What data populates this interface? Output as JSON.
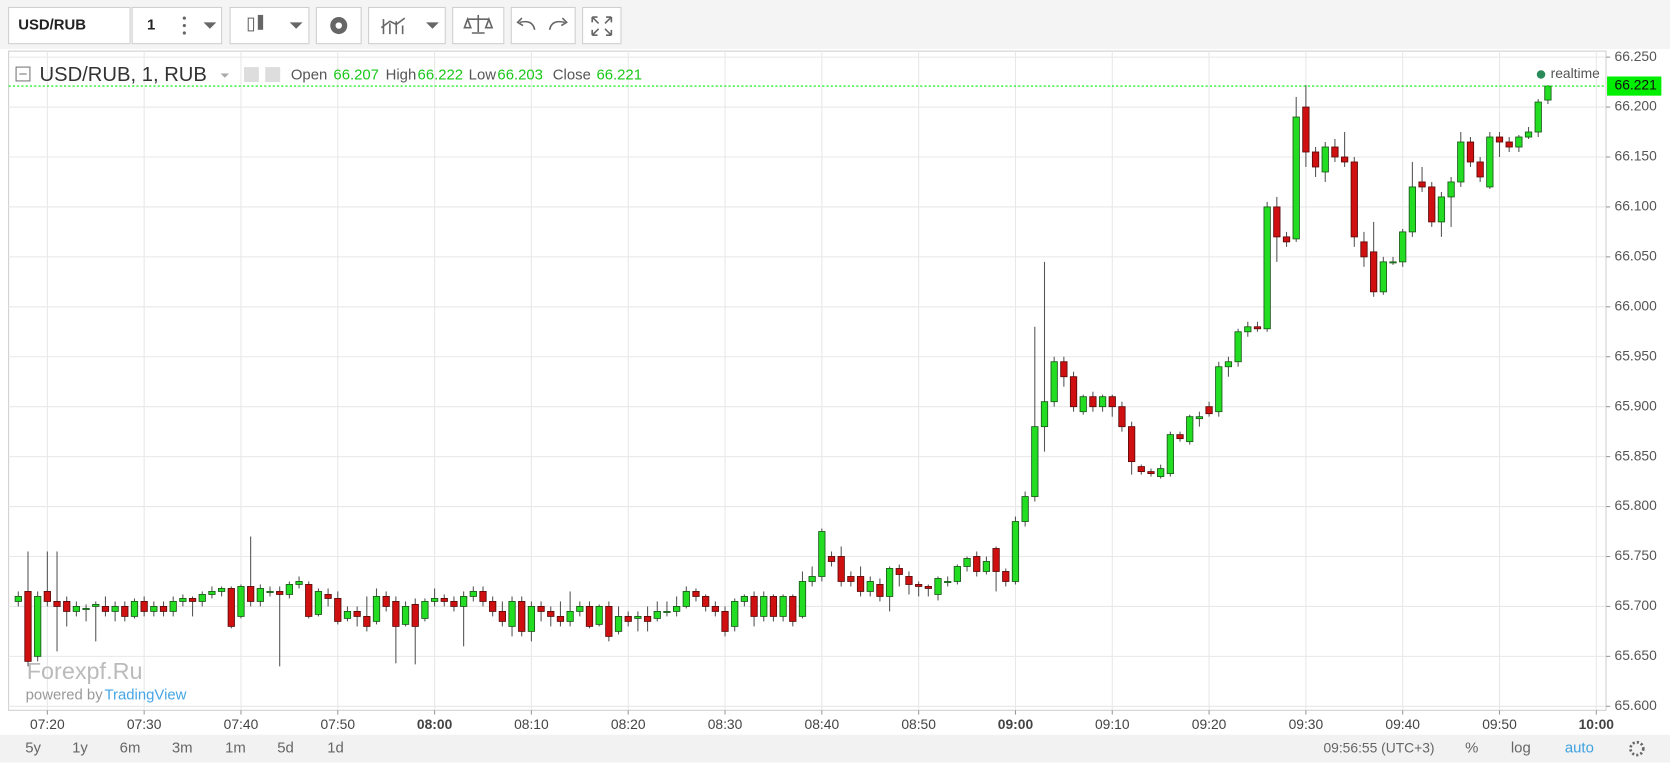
{
  "chart_data": {
    "type": "candlestick",
    "x": [
      "07:17",
      "07:18",
      "07:19",
      "07:20",
      "07:21",
      "07:22",
      "07:23",
      "07:24",
      "07:25",
      "07:26",
      "07:27",
      "07:28",
      "07:29",
      "07:30",
      "07:31",
      "07:32",
      "07:33",
      "07:34",
      "07:35",
      "07:36",
      "07:37",
      "07:38",
      "07:39",
      "07:40",
      "07:41",
      "07:42",
      "07:43",
      "07:44",
      "07:45",
      "07:46",
      "07:47",
      "07:48",
      "07:49",
      "07:50",
      "07:51",
      "07:52",
      "07:53",
      "07:54",
      "07:55",
      "07:56",
      "07:57",
      "07:58",
      "07:59",
      "08:00",
      "08:01",
      "08:02",
      "08:03",
      "08:04",
      "08:05",
      "08:06",
      "08:07",
      "08:08",
      "08:09",
      "08:10",
      "08:11",
      "08:12",
      "08:13",
      "08:14",
      "08:15",
      "08:16",
      "08:17",
      "08:18",
      "08:19",
      "08:20",
      "08:21",
      "08:22",
      "08:23",
      "08:24",
      "08:25",
      "08:26",
      "08:27",
      "08:28",
      "08:29",
      "08:30",
      "08:31",
      "08:32",
      "08:33",
      "08:34",
      "08:35",
      "08:36",
      "08:37",
      "08:38",
      "08:39",
      "08:40",
      "08:41",
      "08:42",
      "08:43",
      "08:44",
      "08:45",
      "08:46",
      "08:47",
      "08:48",
      "08:49",
      "08:50",
      "08:51",
      "08:52",
      "08:53",
      "08:54",
      "08:55",
      "08:56",
      "08:57",
      "08:58",
      "08:59",
      "09:00",
      "09:01",
      "09:02",
      "09:03",
      "09:04",
      "09:05",
      "09:06",
      "09:07",
      "09:08",
      "09:09",
      "09:10",
      "09:11",
      "09:12",
      "09:13",
      "09:14",
      "09:15",
      "09:16",
      "09:17",
      "09:18",
      "09:19",
      "09:20",
      "09:21",
      "09:22",
      "09:23",
      "09:24",
      "09:25",
      "09:26",
      "09:27",
      "09:28",
      "09:29",
      "09:30",
      "09:31",
      "09:32",
      "09:33",
      "09:34",
      "09:35",
      "09:36",
      "09:37",
      "09:38",
      "09:39",
      "09:40",
      "09:41",
      "09:42",
      "09:43",
      "09:44",
      "09:45",
      "09:46",
      "09:47",
      "09:48",
      "09:49",
      "09:50",
      "09:51",
      "09:52",
      "09:53",
      "09:54",
      "09:55"
    ],
    "open": [
      65.705,
      65.715,
      65.65,
      65.715,
      65.705,
      65.705,
      65.695,
      65.698,
      65.7,
      65.7,
      65.695,
      65.7,
      65.69,
      65.705,
      65.695,
      65.7,
      65.695,
      65.705,
      65.708,
      65.705,
      65.712,
      65.715,
      65.718,
      65.69,
      65.72,
      65.705,
      65.715,
      65.715,
      65.712,
      65.722,
      65.722,
      65.692,
      65.712,
      65.708,
      65.688,
      65.695,
      65.69,
      65.685,
      65.71,
      65.705,
      65.682,
      65.702,
      65.688,
      65.705,
      65.708,
      65.705,
      65.7,
      65.71,
      65.715,
      65.705,
      65.695,
      65.68,
      65.705,
      65.675,
      65.7,
      65.695,
      65.69,
      65.685,
      65.695,
      65.7,
      65.682,
      65.7,
      65.675,
      65.69,
      65.688,
      65.69,
      65.688,
      65.695,
      65.695,
      65.7,
      65.715,
      65.71,
      65.7,
      65.695,
      65.68,
      65.705,
      65.71,
      65.69,
      65.71,
      65.69,
      65.71,
      65.69,
      65.725,
      65.73,
      65.75,
      65.75,
      65.73,
      65.73,
      65.715,
      65.722,
      65.71,
      65.738,
      65.73,
      65.722,
      65.72,
      65.712,
      65.725,
      65.725,
      65.74,
      65.75,
      65.735,
      65.758,
      65.735,
      65.725,
      65.785,
      65.81,
      65.88,
      65.905,
      65.945,
      65.93,
      65.895,
      65.91,
      65.9,
      65.91,
      65.9,
      65.88,
      65.84,
      65.835,
      65.83,
      65.833,
      65.872,
      65.865,
      65.888,
      65.9,
      65.895,
      65.94,
      65.945,
      65.975,
      65.98,
      65.978,
      66.1,
      66.07,
      66.068,
      66.2,
      66.155,
      66.135,
      66.16,
      66.15,
      66.145,
      66.065,
      66.055,
      66.015,
      66.045,
      66.045,
      66.075,
      66.125,
      66.12,
      66.085,
      66.11,
      66.125,
      66.165,
      66.145,
      66.12,
      66.17,
      66.165,
      66.16,
      66.17,
      66.175,
      66.207
    ],
    "high": [
      65.715,
      65.755,
      65.715,
      65.755,
      65.755,
      65.71,
      65.705,
      65.702,
      65.705,
      65.71,
      65.705,
      65.705,
      65.708,
      65.71,
      65.705,
      65.705,
      65.71,
      65.712,
      65.71,
      65.715,
      65.72,
      65.72,
      65.72,
      65.722,
      65.77,
      65.722,
      65.72,
      65.72,
      65.725,
      65.73,
      65.725,
      65.718,
      65.718,
      65.715,
      65.7,
      65.7,
      65.71,
      65.718,
      65.715,
      65.71,
      65.705,
      65.708,
      65.708,
      65.718,
      65.712,
      65.71,
      65.715,
      65.72,
      65.72,
      65.71,
      65.705,
      65.71,
      65.71,
      65.705,
      65.705,
      65.7,
      65.705,
      65.715,
      65.705,
      65.705,
      65.702,
      65.705,
      65.7,
      65.695,
      65.695,
      65.7,
      65.705,
      65.705,
      65.71,
      65.72,
      65.718,
      65.712,
      65.705,
      65.7,
      65.708,
      65.712,
      65.715,
      65.715,
      65.712,
      65.712,
      65.712,
      65.735,
      65.74,
      65.778,
      65.755,
      65.76,
      65.735,
      65.74,
      65.73,
      65.728,
      65.74,
      65.742,
      65.735,
      65.725,
      65.722,
      65.73,
      65.73,
      65.742,
      65.75,
      65.755,
      65.75,
      65.76,
      65.738,
      65.79,
      65.815,
      65.98,
      66.045,
      65.95,
      65.95,
      65.935,
      65.912,
      65.915,
      65.912,
      65.912,
      65.905,
      65.885,
      65.842,
      65.838,
      65.842,
      65.875,
      65.875,
      65.892,
      65.895,
      65.905,
      65.945,
      65.95,
      65.978,
      65.985,
      65.985,
      66.105,
      66.11,
      66.075,
      66.21,
      66.222,
      66.16,
      66.165,
      66.168,
      66.175,
      66.15,
      66.075,
      66.085,
      66.05,
      66.05,
      66.078,
      66.145,
      66.14,
      66.125,
      66.115,
      66.13,
      66.175,
      66.17,
      66.15,
      66.175,
      66.175,
      66.17,
      66.172,
      66.18,
      66.208,
      66.222
    ],
    "low": [
      65.7,
      65.64,
      65.645,
      65.7,
      65.655,
      65.68,
      65.69,
      65.685,
      65.665,
      65.69,
      65.685,
      65.685,
      65.688,
      65.69,
      65.69,
      65.69,
      65.69,
      65.7,
      65.69,
      65.7,
      65.708,
      65.71,
      65.678,
      65.688,
      65.7,
      65.7,
      65.71,
      65.64,
      65.708,
      65.718,
      65.688,
      65.69,
      65.7,
      65.682,
      65.685,
      65.68,
      65.675,
      65.682,
      65.695,
      65.643,
      65.68,
      65.642,
      65.685,
      65.7,
      65.7,
      65.695,
      65.66,
      65.705,
      65.7,
      65.69,
      65.68,
      65.67,
      65.67,
      65.665,
      65.685,
      65.68,
      65.68,
      65.68,
      65.69,
      65.678,
      65.68,
      65.665,
      65.672,
      65.68,
      65.675,
      65.675,
      65.685,
      65.69,
      65.69,
      65.698,
      65.705,
      65.695,
      65.69,
      65.67,
      65.675,
      65.7,
      65.68,
      65.685,
      65.685,
      65.685,
      65.68,
      65.688,
      65.72,
      65.725,
      65.74,
      65.72,
      65.72,
      65.71,
      65.71,
      65.705,
      65.695,
      65.72,
      65.712,
      65.71,
      65.71,
      65.706,
      65.72,
      65.722,
      65.735,
      65.73,
      65.732,
      65.715,
      65.72,
      65.722,
      65.78,
      65.805,
      65.855,
      65.9,
      65.92,
      65.895,
      65.892,
      65.895,
      65.895,
      65.89,
      65.875,
      65.832,
      65.832,
      65.83,
      65.828,
      65.83,
      65.865,
      65.862,
      65.88,
      65.89,
      65.89,
      65.93,
      65.94,
      65.97,
      65.975,
      65.975,
      66.045,
      66.06,
      66.065,
      66.14,
      66.13,
      66.125,
      66.145,
      66.14,
      66.06,
      66.04,
      66.01,
      66.012,
      66.042,
      66.04,
      66.07,
      66.115,
      66.08,
      66.07,
      66.08,
      66.12,
      66.14,
      66.125,
      66.118,
      66.15,
      66.155,
      66.155,
      66.168,
      66.17,
      66.203
    ],
    "close": [
      65.71,
      65.645,
      65.71,
      65.705,
      65.7,
      65.695,
      65.7,
      65.698,
      65.702,
      65.695,
      65.7,
      65.69,
      65.705,
      65.695,
      65.7,
      65.695,
      65.705,
      65.708,
      65.705,
      65.712,
      65.715,
      65.718,
      65.68,
      65.72,
      65.705,
      65.718,
      65.715,
      65.712,
      65.722,
      65.725,
      65.69,
      65.715,
      65.708,
      65.685,
      65.695,
      65.69,
      65.68,
      65.71,
      65.7,
      65.68,
      65.7,
      65.68,
      65.705,
      65.708,
      65.705,
      65.7,
      65.71,
      65.715,
      65.705,
      65.695,
      65.685,
      65.705,
      65.675,
      65.7,
      65.695,
      65.69,
      65.685,
      65.695,
      65.7,
      65.68,
      65.7,
      65.67,
      65.69,
      65.685,
      65.69,
      65.685,
      65.695,
      65.695,
      65.7,
      65.715,
      65.71,
      65.7,
      65.695,
      65.675,
      65.705,
      65.71,
      65.69,
      65.71,
      65.69,
      65.71,
      65.685,
      65.725,
      65.73,
      65.775,
      65.745,
      65.725,
      65.725,
      65.715,
      65.725,
      65.71,
      65.738,
      65.732,
      65.722,
      65.72,
      65.718,
      65.728,
      65.725,
      65.74,
      65.748,
      65.735,
      65.745,
      65.735,
      65.725,
      65.785,
      65.81,
      65.88,
      65.905,
      65.945,
      65.93,
      65.9,
      65.91,
      65.9,
      65.91,
      65.9,
      65.88,
      65.845,
      65.835,
      65.833,
      65.838,
      65.872,
      65.868,
      65.89,
      65.89,
      65.893,
      65.94,
      65.945,
      65.975,
      65.98,
      65.978,
      66.1,
      66.07,
      66.065,
      66.19,
      66.155,
      66.14,
      66.16,
      66.15,
      66.145,
      66.07,
      66.05,
      66.015,
      66.045,
      66.045,
      66.075,
      66.12,
      66.12,
      66.085,
      66.11,
      66.125,
      66.165,
      66.145,
      66.13,
      66.17,
      66.165,
      66.16,
      66.17,
      66.175,
      66.205,
      66.221
    ],
    "up_color": "#22dd22",
    "down_color": "#d01010",
    "grid": true,
    "last_price_color": "#00ee00",
    "xlim": [
      "07:16",
      "10:01"
    ],
    "xticks": [
      "07:20",
      "07:30",
      "07:40",
      "07:50",
      "08:00",
      "08:10",
      "08:20",
      "08:30",
      "08:40",
      "08:50",
      "09:00",
      "09:10",
      "09:20",
      "09:30",
      "09:40",
      "09:50",
      "10:00"
    ],
    "ylim": [
      65.596,
      66.256
    ],
    "yticks": [
      {
        "value": 65.6,
        "label": "65.600"
      },
      {
        "value": 65.65,
        "label": "65.650"
      },
      {
        "value": 65.7,
        "label": "65.700"
      },
      {
        "value": 65.75,
        "label": "65.750"
      },
      {
        "value": 65.8,
        "label": "65.800"
      },
      {
        "value": 65.85,
        "label": "65.850"
      },
      {
        "value": 65.9,
        "label": "65.900"
      },
      {
        "value": 65.95,
        "label": "65.950"
      },
      {
        "value": 66.0,
        "label": "66.000"
      },
      {
        "value": 66.05,
        "label": "66.050"
      },
      {
        "value": 66.1,
        "label": "66.100"
      },
      {
        "value": 66.15,
        "label": "66.150"
      },
      {
        "value": 66.2,
        "label": "66.200"
      },
      {
        "value": 66.25,
        "label": "66.250"
      }
    ],
    "legend": {
      "title": "USD/RUB, 1, RUB",
      "open": "Open",
      "high": "High",
      "low": "Low",
      "close": "Close"
    },
    "realtime": "realtime"
  },
  "ui": {
    "symbol": "USD/RUB",
    "interval": "1",
    "watermark": "Forexpf.Ru",
    "powered_by": "powered by",
    "powered_brand": "TradingView",
    "ranges": [
      "5y",
      "1y",
      "6m",
      "3m",
      "1m",
      "5d",
      "1d"
    ],
    "clock": "09:56:55 (UTC+3)",
    "percent": "%",
    "log": "log",
    "auto": "auto"
  }
}
